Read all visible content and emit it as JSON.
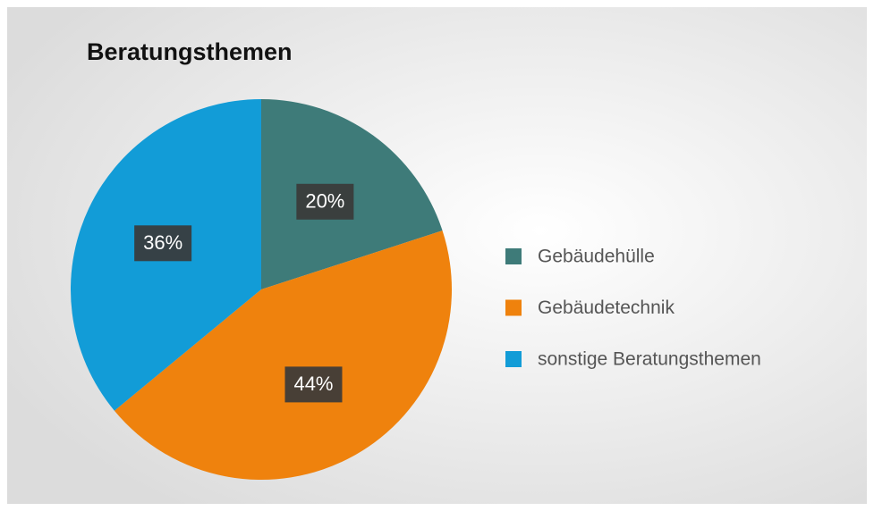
{
  "chart_data": {
    "type": "pie",
    "title": "Beratungsthemen",
    "categories": [
      "Gebäudehülle",
      "Gebäudetechnik",
      "sonstige Beratungsthemen"
    ],
    "values": [
      20,
      44,
      36
    ],
    "value_labels": [
      "20%",
      "44%",
      "36%"
    ],
    "colors": [
      "#3e7b79",
      "#ef820d",
      "#129cd7"
    ],
    "legend": "right"
  }
}
